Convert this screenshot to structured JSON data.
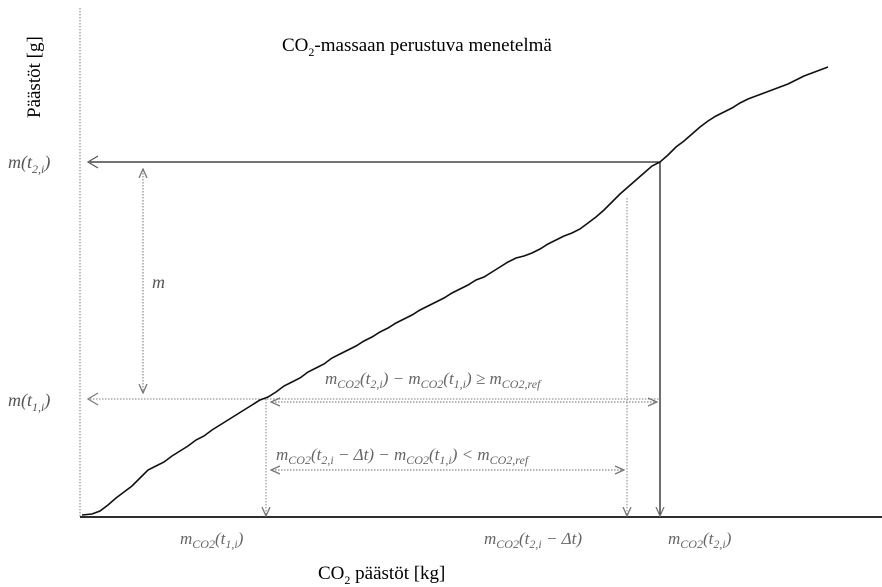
{
  "title": {
    "pre": "CO",
    "sub": "2",
    "post": "-massaan perustuva menetelmä"
  },
  "y_axis_label": "Päästöt [g]",
  "x_axis_label": {
    "pre": "CO",
    "sub": "2",
    "post": " päästöt [kg]"
  },
  "y_labels": {
    "upper": "m(t",
    "upper_sub": "2,i",
    "upper_end": ")",
    "lower": "m(t",
    "lower_sub": "1,i",
    "lower_end": ")"
  },
  "x_labels": {
    "left": "m",
    "left_sub": "CO2",
    "left_rest": "(t",
    "left_rest_sub": "1,i",
    "left_end": ")",
    "middle": "m",
    "middle_sub": "CO2",
    "middle_rest": "(t",
    "middle_rest_sub": "2,i",
    "middle_end": " − Δt)",
    "right": "m",
    "right_sub": "CO2",
    "right_rest": "(t",
    "right_rest_sub": "2,i",
    "right_end": ")"
  },
  "m_label": "m",
  "equations": {
    "upper": "m_CO2(t2,i) − m_CO2(t1,i) ≥ m_CO2,ref",
    "upper_parts": [
      "m",
      "CO2",
      "(t",
      "2,i",
      ") − m",
      "CO2",
      "(t",
      "1,i",
      ") ≥ m",
      "CO2,ref"
    ],
    "lower": "m_CO2(t2,i − Δt) − m_CO2(t1,i) < m_CO2,ref",
    "lower_parts": [
      "m",
      "CO2",
      "(t",
      "2,i",
      " − Δt) − m",
      "CO2",
      "(t",
      "1,i",
      ") < m",
      "CO2,ref"
    ]
  },
  "colors": {
    "curve": "#111111",
    "guide": "#222222",
    "dotted": "#888888",
    "arrow": "#777777"
  }
}
